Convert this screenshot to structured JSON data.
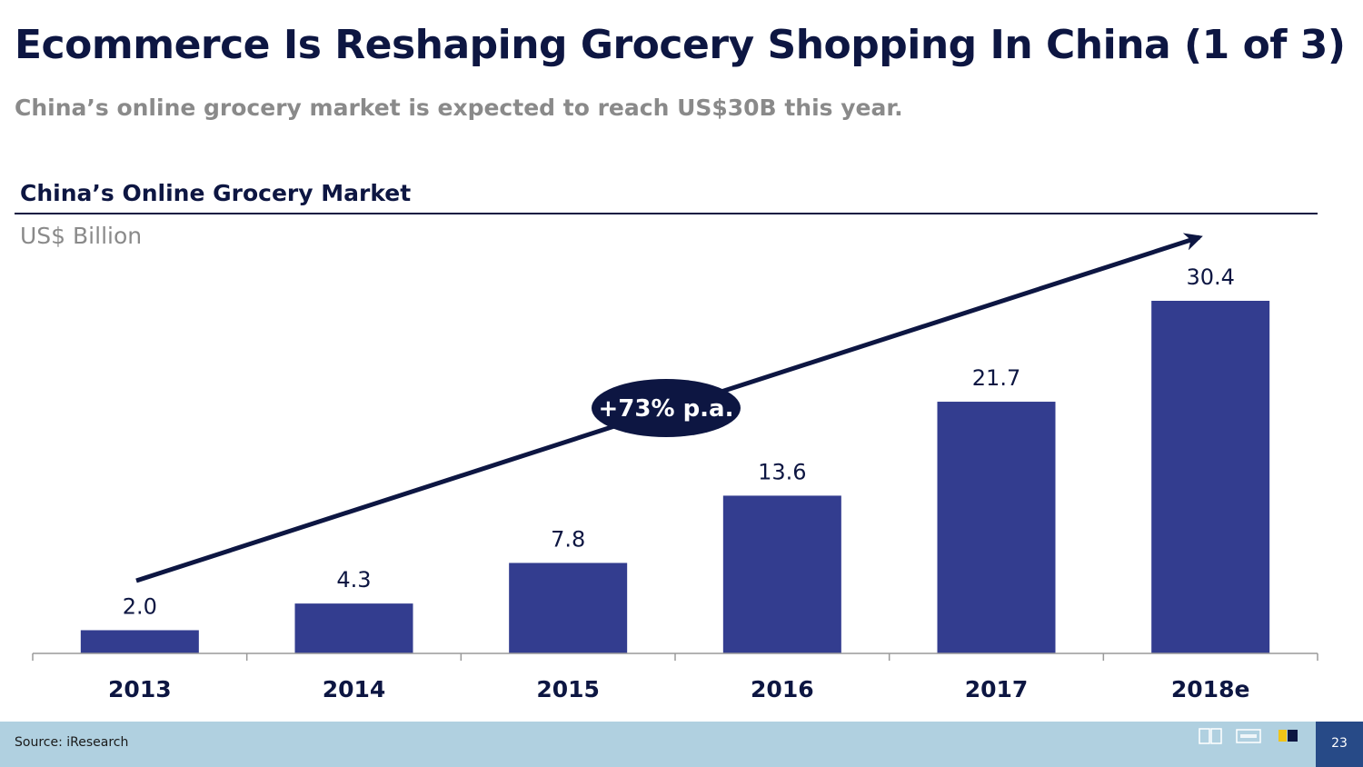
{
  "slide": {
    "title": "Ecommerce Is Reshaping Grocery Shopping In China (1 of 3)",
    "subtitle": "China’s online grocery market is expected to reach US$30B this year.",
    "page_number": "23"
  },
  "footer": {
    "source": "Source: iResearch"
  },
  "colors": {
    "bar": "#333d8f",
    "title": "#0d1642",
    "footer_bg": "#b0d0e0",
    "page_box": "#274a87"
  },
  "chart_data": {
    "type": "bar",
    "title": "China’s Online Grocery Market",
    "ylabel": "US$ Billion",
    "xlabel": "",
    "categories": [
      "2013",
      "2014",
      "2015",
      "2016",
      "2017",
      "2018e"
    ],
    "values": [
      2.0,
      4.3,
      7.8,
      13.6,
      21.7,
      30.4
    ],
    "value_labels": [
      "2.0",
      "4.3",
      "7.8",
      "13.6",
      "21.7",
      "30.4"
    ],
    "ylim": [
      0,
      30.4
    ],
    "grid": false,
    "annotation": {
      "type": "trend-arrow",
      "text": "+73% p.a."
    }
  }
}
